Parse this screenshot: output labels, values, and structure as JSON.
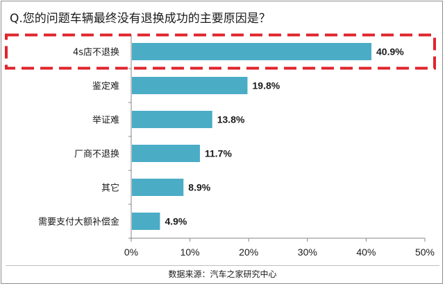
{
  "chart_data": {
    "type": "bar",
    "orientation": "horizontal",
    "title": "Q.您的问题车辆最终没有退换成功的主要原因是？",
    "categories": [
      "4s店不退换",
      "鉴定难",
      "举证难",
      "厂商不退换",
      "其它",
      "需要支付大额补偿金"
    ],
    "values": [
      40.9,
      19.8,
      13.8,
      11.7,
      8.9,
      4.9
    ],
    "value_labels": [
      "40.9%",
      "19.8%",
      "13.8%",
      "11.7%",
      "8.9%",
      "4.9%"
    ],
    "xlim": [
      0,
      50
    ],
    "xticks": [
      0,
      10,
      20,
      30,
      40,
      50
    ],
    "xtick_labels": [
      "0%",
      "10%",
      "20%",
      "30%",
      "40%",
      "50%"
    ],
    "grid": false,
    "highlighted_category": "4s店不退换",
    "source": "数据来源：汽车之家研究中心",
    "colors": {
      "bar": "#4bacc6",
      "highlight": "#e0242b"
    }
  }
}
